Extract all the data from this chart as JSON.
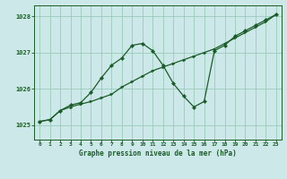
{
  "title": "Graphe pression niveau de la mer (hPa)",
  "xlim": [
    -0.5,
    23.5
  ],
  "xticks": [
    0,
    1,
    2,
    3,
    4,
    5,
    6,
    7,
    8,
    9,
    10,
    11,
    12,
    13,
    14,
    15,
    16,
    17,
    18,
    19,
    20,
    21,
    22,
    23
  ],
  "ylim": [
    1024.6,
    1028.3
  ],
  "yticks": [
    1025,
    1026,
    1027,
    1028
  ],
  "bg_color": "#cce8e8",
  "grid_color": "#99ccbb",
  "line_color": "#1a5c28",
  "line1_x": [
    0,
    1,
    2,
    3,
    4,
    5,
    6,
    7,
    8,
    9,
    10,
    11,
    12,
    13,
    14,
    15,
    16,
    17,
    18,
    19,
    20,
    21,
    22,
    23
  ],
  "line1_y": [
    1025.1,
    1025.15,
    1025.4,
    1025.5,
    1025.58,
    1025.65,
    1025.75,
    1025.85,
    1026.05,
    1026.2,
    1026.35,
    1026.5,
    1026.6,
    1026.7,
    1026.8,
    1026.9,
    1027.0,
    1027.1,
    1027.25,
    1027.4,
    1027.55,
    1027.7,
    1027.85,
    1028.05
  ],
  "line2_x": [
    0,
    1,
    2,
    3,
    4,
    5,
    6,
    7,
    8,
    9,
    10,
    11,
    12,
    13,
    14,
    15,
    16,
    17,
    18,
    19,
    20,
    21,
    22,
    23
  ],
  "line2_y": [
    1025.1,
    1025.15,
    1025.4,
    1025.55,
    1025.62,
    1025.9,
    1026.3,
    1026.65,
    1026.85,
    1027.2,
    1027.25,
    1027.05,
    1026.65,
    1026.15,
    1025.8,
    1025.5,
    1025.65,
    1027.05,
    1027.2,
    1027.45,
    1027.6,
    1027.75,
    1027.9,
    1028.05
  ]
}
